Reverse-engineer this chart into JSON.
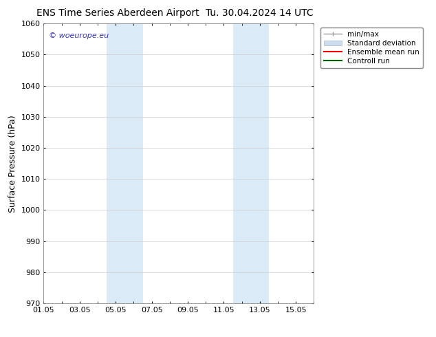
{
  "title_left": "ENS Time Series Aberdeen Airport",
  "title_right": "Tu. 30.04.2024 14 UTC",
  "ylabel": "Surface Pressure (hPa)",
  "ylim": [
    970,
    1060
  ],
  "yticks": [
    970,
    980,
    990,
    1000,
    1010,
    1020,
    1030,
    1040,
    1050,
    1060
  ],
  "xtick_labels": [
    "01.05",
    "03.05",
    "05.05",
    "07.05",
    "09.05",
    "11.05",
    "13.05",
    "15.05"
  ],
  "xtick_positions": [
    0,
    2,
    4,
    6,
    8,
    10,
    12,
    14
  ],
  "xlim": [
    0,
    15
  ],
  "shaded_bands": [
    {
      "x_start": 3.5,
      "x_end": 5.5,
      "color": "#daeaf7"
    },
    {
      "x_start": 10.5,
      "x_end": 12.5,
      "color": "#daeaf7"
    }
  ],
  "watermark": "© woeurope.eu",
  "watermark_color": "#3333cc",
  "legend_labels": [
    "min/max",
    "Standard deviation",
    "Ensemble mean run",
    "Controll run"
  ],
  "legend_colors": [
    "#999999",
    "#ccdded",
    "#ff0000",
    "#006600"
  ],
  "bg_color": "#ffffff",
  "plot_bg_color": "#ffffff",
  "grid_color": "#cccccc",
  "title_fontsize": 10,
  "ylabel_fontsize": 9,
  "tick_fontsize": 8,
  "legend_fontsize": 7.5,
  "watermark_fontsize": 8
}
